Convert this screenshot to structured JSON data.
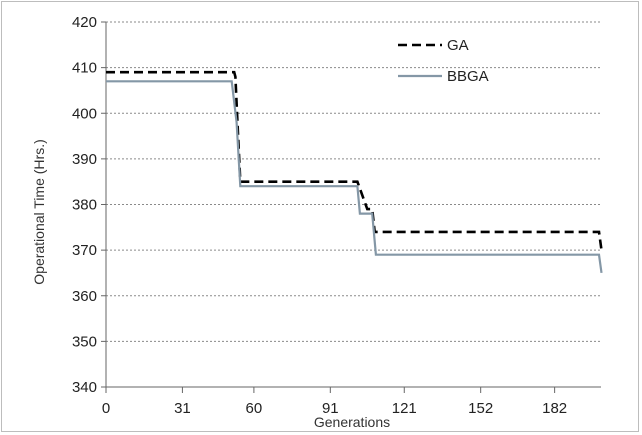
{
  "chart_data": {
    "type": "line",
    "xlabel": "Generations",
    "ylabel": "Operational Time (Hrs.)",
    "x_ticks": [
      0,
      31,
      60,
      91,
      121,
      152,
      182
    ],
    "y_ticks": [
      340,
      350,
      360,
      370,
      380,
      390,
      400,
      410,
      420
    ],
    "xlim": [
      0,
      200
    ],
    "ylim": [
      340,
      420
    ],
    "grid": "horizontal",
    "legend_position": "top-right",
    "series": [
      {
        "name": "GA",
        "style": "dashed",
        "color": "#000000",
        "points": [
          [
            0,
            409
          ],
          [
            52,
            409
          ],
          [
            52.5,
            408
          ],
          [
            53.5,
            396
          ],
          [
            54.5,
            385
          ],
          [
            102,
            385
          ],
          [
            106,
            379
          ],
          [
            108,
            379
          ],
          [
            109,
            374
          ],
          [
            200,
            374
          ],
          [
            201,
            370
          ]
        ]
      },
      {
        "name": "BBGA",
        "style": "solid",
        "color": "#8497a6",
        "points": [
          [
            0,
            407
          ],
          [
            51,
            407
          ],
          [
            53,
            398
          ],
          [
            54.5,
            384
          ],
          [
            102,
            384
          ],
          [
            103,
            378
          ],
          [
            108,
            378
          ],
          [
            109.5,
            369
          ],
          [
            200,
            369
          ],
          [
            201,
            365
          ]
        ]
      }
    ]
  }
}
